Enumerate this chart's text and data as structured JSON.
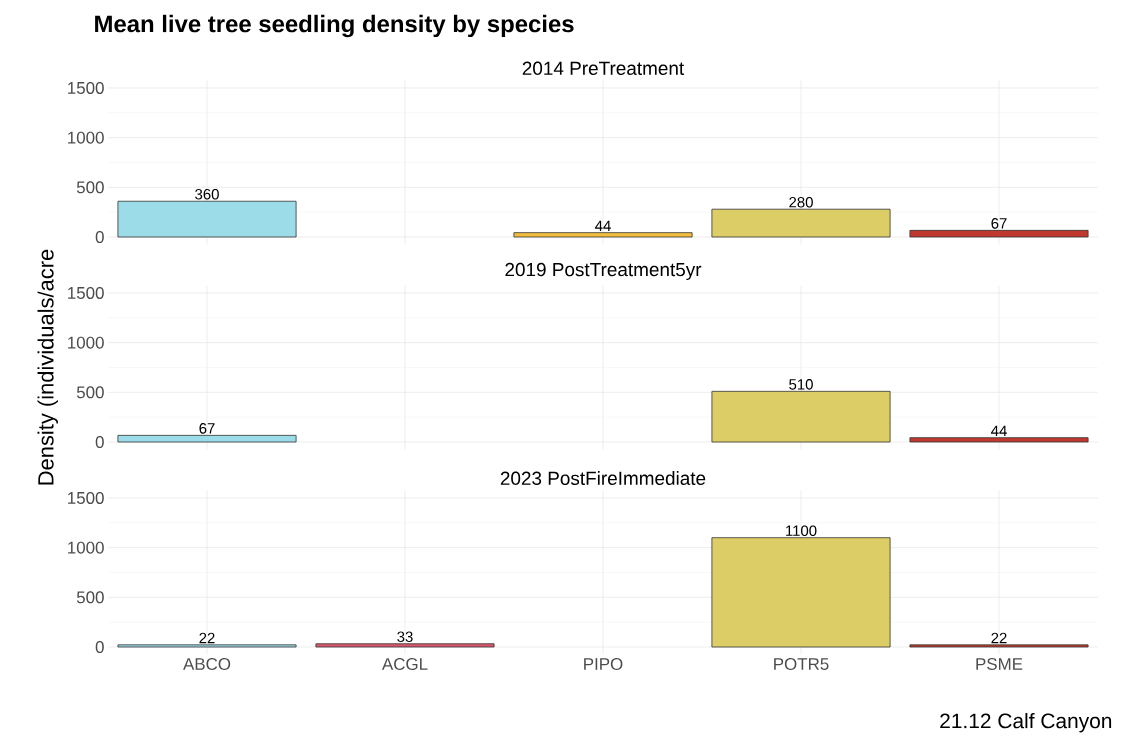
{
  "chart_data": [
    {
      "type": "bar",
      "title": "Mean live tree seedling density by species",
      "subtitle": "2014 PreTreatment",
      "categories": [
        null,
        null,
        null,
        null,
        null
      ],
      "values": [
        360,
        null,
        44,
        280,
        67
      ],
      "colors": [
        "#9cdce8",
        "#d9576a",
        "#f2bd3d",
        "#ddcd66",
        "#c0392f"
      ],
      "ylim": [
        -75,
        1575
      ],
      "yticks": [
        0,
        500,
        1000,
        1500
      ],
      "grid": true,
      "data_labels": true,
      "tick_labels": "y"
    },
    {
      "type": "bar",
      "title": "2019 PostTreatment5yr",
      "ylabel": "Density (individuals/acre",
      "categories": [
        null,
        null,
        null,
        null,
        null
      ],
      "values": [
        67,
        null,
        null,
        510,
        44
      ],
      "colors": [
        "#9cdce8",
        "#d9576a",
        "#f2bd3d",
        "#ddcd66",
        "#c0392f"
      ],
      "ylim": [
        -75,
        1575
      ],
      "yticks": [
        0,
        500,
        1000,
        1500
      ],
      "grid": true,
      "data_labels": true,
      "tick_labels": "y"
    },
    {
      "type": "bar",
      "title": "2023 PostFireImmediate",
      "categories": [
        "ABCO",
        "ACGL",
        "PIPO",
        "POTR5",
        "PSME"
      ],
      "values": [
        22,
        33,
        null,
        1100,
        22
      ],
      "colors": [
        "#9cdce8",
        "#d9576a",
        "#f2bd3d",
        "#ddcd66",
        "#c0392f"
      ],
      "ylim": [
        -75,
        1575
      ],
      "yticks": [
        0,
        500,
        1000,
        1500
      ],
      "grid": true,
      "data_labels": true,
      "annotations": [
        "21.12 Calf Canyon"
      ]
    }
  ]
}
